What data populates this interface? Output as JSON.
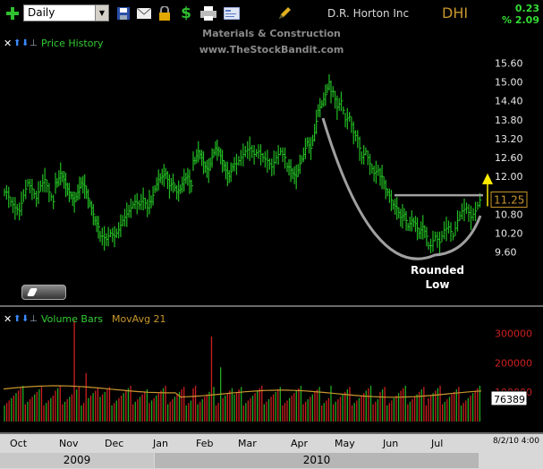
{
  "toolbar": {
    "timeframe": "Daily",
    "icons": [
      "plus-icon",
      "save-icon",
      "mail-icon",
      "lock-icon",
      "dollar-icon",
      "print-icon",
      "card-icon",
      "pencil-icon"
    ],
    "company_name": "D.R. Horton Inc",
    "ticker": "DHI",
    "change_abs": "0.23",
    "change_pct": "% 2.09"
  },
  "watermark": {
    "line1": "Materials & Construction",
    "line2": "www.TheStockBandit.com"
  },
  "price_panel": {
    "label": "Price History",
    "annotation": "Rounded\nLow",
    "colors": {
      "bars": "#22bb22",
      "pattern": "#a0a0a0",
      "arrow": "#ffee00",
      "price_badge": "#c8962d"
    }
  },
  "volume_panel": {
    "label": "Volume Bars",
    "ma_label": "MovAvg 21",
    "colors": {
      "up": "#22aa22",
      "down": "#cc2020",
      "ma": "#c8962d"
    }
  },
  "date_axis": {
    "months": [
      "Oct",
      "Nov",
      "Dec",
      "Jan",
      "Feb",
      "Mar",
      "Apr",
      "May",
      "Jun",
      "Jul"
    ],
    "years": [
      "2009",
      "2010"
    ],
    "date_stamp": "8/2/10 4:00"
  },
  "chart_data": [
    {
      "type": "ohlc",
      "title": "",
      "y_ticks": [
        15.6,
        15.0,
        14.4,
        13.8,
        13.2,
        12.6,
        12.0,
        11.4,
        10.8,
        10.2,
        9.6
      ],
      "y_tick_labels": [
        "15.60",
        "15.00",
        "14.40",
        "13.80",
        "13.20",
        "12.60",
        "12.00",
        "11.40",
        "10.80",
        "10.20",
        "9.60"
      ],
      "ylim": [
        9.3,
        15.9
      ],
      "last_price": "11.25",
      "resistance_level": 11.4,
      "closes_by_month": [
        {
          "month": "Oct",
          "values": [
            11.5,
            11.2,
            11.0,
            10.9,
            11.4,
            11.8,
            11.6,
            11.3,
            11.7,
            11.9,
            11.5,
            11.2
          ]
        },
        {
          "month": "Nov",
          "values": [
            11.8,
            12.1,
            11.9,
            11.6,
            11.4,
            11.2,
            11.5,
            11.8,
            11.7,
            11.3,
            11.0,
            10.6,
            10.4
          ]
        },
        {
          "month": "Dec",
          "values": [
            10.1,
            10.0,
            10.2,
            10.1,
            10.3,
            10.6,
            10.8,
            11.0,
            11.2,
            11.1,
            11.3,
            11.0
          ]
        },
        {
          "month": "Jan",
          "values": [
            11.2,
            11.6,
            11.9,
            12.0,
            12.1,
            11.7,
            11.8,
            11.5,
            11.6,
            11.9,
            12.0,
            11.7
          ]
        },
        {
          "month": "Feb",
          "values": [
            12.5,
            12.8,
            12.6,
            12.3,
            12.2,
            12.6,
            12.9,
            12.8,
            12.5,
            12.2,
            12.0,
            12.3
          ]
        },
        {
          "month": "Mar",
          "values": [
            12.4,
            12.6,
            12.8,
            12.9,
            12.7,
            12.8,
            12.6,
            12.5,
            12.3,
            12.6,
            12.8,
            12.6
          ]
        },
        {
          "month": "Apr",
          "values": [
            12.3,
            12.1,
            12.0,
            12.4,
            12.7,
            13.1,
            12.9,
            13.4,
            14.1,
            14.3,
            14.6,
            15.0
          ]
        },
        {
          "month": "May",
          "values": [
            14.7,
            14.2,
            14.4,
            13.8,
            13.9,
            13.4,
            13.2,
            12.6,
            12.8,
            12.4,
            12.1,
            12.2
          ]
        },
        {
          "month": "Jun",
          "values": [
            12.0,
            11.6,
            11.4,
            11.1,
            11.0,
            10.7,
            10.8,
            10.4,
            10.6,
            10.5,
            10.2,
            10.4,
            10.1
          ]
        },
        {
          "month": "Jul",
          "values": [
            9.8,
            10.1,
            9.9,
            10.3,
            10.4,
            10.1,
            10.6,
            10.9,
            11.0,
            10.7,
            10.9,
            11.25
          ]
        }
      ]
    },
    {
      "type": "bar",
      "title": "",
      "y_ticks": [
        300000,
        200000,
        100000
      ],
      "y_tick_labels": [
        "300000",
        "200000",
        "100000"
      ],
      "ylim": [
        0,
        360000
      ],
      "last_volume": "76389",
      "moving_average": 95000,
      "spikes": [
        {
          "month": "Nov",
          "volume": 345000
        },
        {
          "month": "Feb",
          "volume": 290000
        },
        {
          "month": "Feb",
          "volume": 185000
        },
        {
          "month": "Nov",
          "volume": 165000
        }
      ]
    }
  ]
}
